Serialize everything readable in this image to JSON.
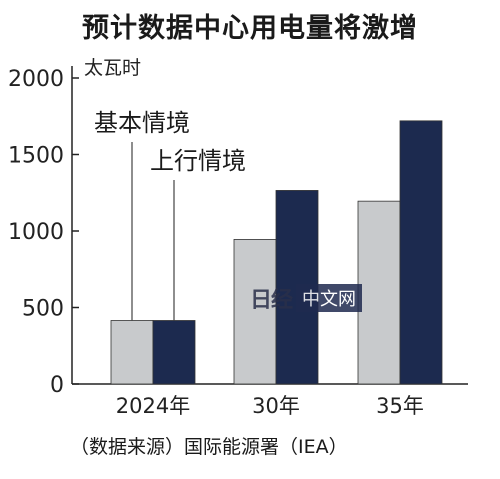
{
  "chart_data": {
    "type": "bar",
    "title": "预计数据中心用电量将激增",
    "unit_label": "太瓦时",
    "categories": [
      "2024年",
      "30年",
      "35年"
    ],
    "series": [
      {
        "name": "基本情境",
        "values": [
          415,
          945,
          1195
        ],
        "color": "#c8cacc"
      },
      {
        "name": "上行情境",
        "values": [
          415,
          1265,
          1720
        ],
        "color": "#1c2a4f"
      }
    ],
    "y_ticks": [
      0,
      500,
      1000,
      1500,
      2000
    ],
    "ylim": [
      0,
      2000
    ],
    "source": "（数据来源）国际能源署（IEA）",
    "legend_placement": "inside-top-left, callout lines"
  },
  "watermark": {
    "logo": "日经",
    "text": "中文网"
  }
}
